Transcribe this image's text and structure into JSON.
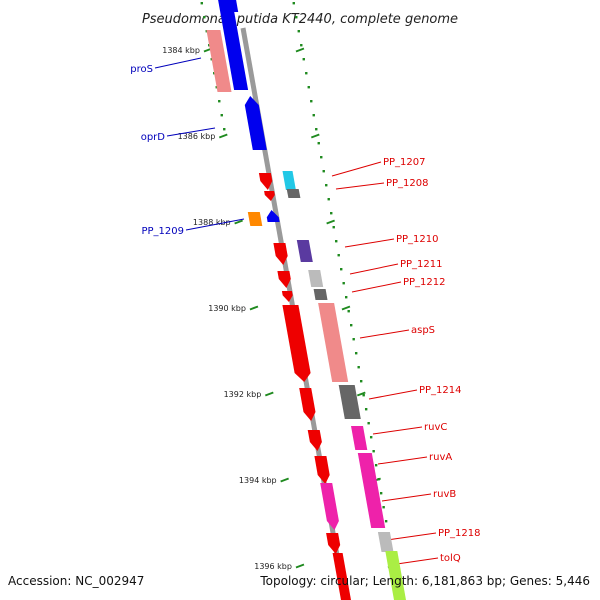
{
  "title": "Pseudomonas putida KT2440, complete genome",
  "footer": {
    "accession": "Accession: NC_002947",
    "summary": "Topology: circular; Length: 6,181,863 bp; Genes: 5,446"
  },
  "colors": {
    "backbone": "#9a9a9a",
    "tick": "#1f8a1f",
    "label_forward": "#0000bb",
    "label_reverse": "#dd0000"
  },
  "ticks": [
    "1384 kbp",
    "1386 kbp",
    "1388 kbp",
    "1390 kbp",
    "1392 kbp",
    "1394 kbp",
    "1396 kbp"
  ],
  "genes": [
    {
      "label": "",
      "strand": "forward",
      "color": "#0000ee"
    },
    {
      "label": "proS",
      "strand": "forward",
      "color": "#f08a8a"
    },
    {
      "label": "",
      "strand": "forward",
      "color": "#0000ee"
    },
    {
      "label": "oprD",
      "strand": "forward",
      "color": "#0000ee"
    },
    {
      "label": "PP_1209",
      "strand": "forward",
      "color": "#0000ee"
    },
    {
      "label": "",
      "strand": "forward",
      "color": "#ff8800"
    },
    {
      "label": "PP_1207",
      "strand": "reverse",
      "color": "#22c8e6"
    },
    {
      "label": "",
      "strand": "reverse",
      "color": "#ee0000"
    },
    {
      "label": "PP_1208",
      "strand": "reverse",
      "color": "#666666"
    },
    {
      "label": "",
      "strand": "reverse",
      "color": "#ee0000"
    },
    {
      "label": "PP_1210",
      "strand": "reverse",
      "color": "#5a3aa0"
    },
    {
      "label": "",
      "strand": "reverse",
      "color": "#ee0000"
    },
    {
      "label": "PP_1211",
      "strand": "reverse",
      "color": "#bbbbbb"
    },
    {
      "label": "",
      "strand": "reverse",
      "color": "#ee0000"
    },
    {
      "label": "PP_1212",
      "strand": "reverse",
      "color": "#666666"
    },
    {
      "label": "",
      "strand": "reverse",
      "color": "#ee0000"
    },
    {
      "label": "aspS",
      "strand": "reverse",
      "color": "#f08a8a"
    },
    {
      "label": "",
      "strand": "reverse",
      "color": "#ee0000"
    },
    {
      "label": "PP_1214",
      "strand": "reverse",
      "color": "#666666"
    },
    {
      "label": "",
      "strand": "reverse",
      "color": "#ee0000"
    },
    {
      "label": "ruvC",
      "strand": "reverse",
      "color": "#ee22aa"
    },
    {
      "label": "",
      "strand": "reverse",
      "color": "#ee0000"
    },
    {
      "label": "ruvA",
      "strand": "reverse",
      "color": "#ee22aa"
    },
    {
      "label": "",
      "strand": "reverse",
      "color": "#ee0000"
    },
    {
      "label": "ruvB",
      "strand": "reverse",
      "color": "#ee22aa"
    },
    {
      "label": "",
      "strand": "reverse",
      "color": "#ee0000"
    },
    {
      "label": "PP_1218",
      "strand": "reverse",
      "color": "#bbbbbb"
    },
    {
      "label": "",
      "strand": "reverse",
      "color": "#ee0000"
    },
    {
      "label": "tolQ",
      "strand": "reverse",
      "color": "#aaee44"
    }
  ]
}
